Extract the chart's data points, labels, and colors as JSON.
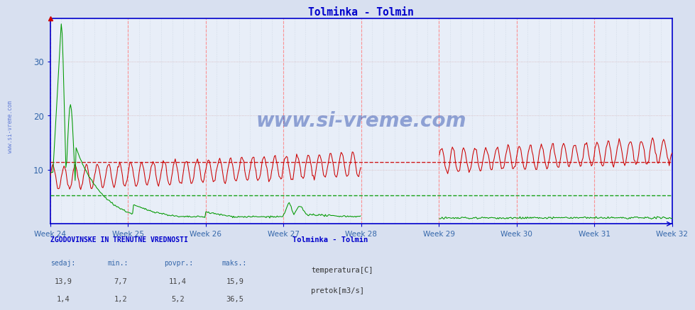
{
  "title": "Tolminka - Tolmin",
  "title_color": "#0000cc",
  "fig_bg_color": "#d8e0f0",
  "plot_bg_color": "#e8eef8",
  "axis_color": "#0000cc",
  "tick_color": "#3366aa",
  "xlim": [
    0,
    672
  ],
  "ylim": [
    0,
    38
  ],
  "yticks": [
    10,
    20,
    30
  ],
  "week_labels": [
    "Week 24",
    "Week 25",
    "Week 26",
    "Week 27",
    "Week 28",
    "Week 29",
    "Week 30",
    "Week 31",
    "Week 32"
  ],
  "week_positions": [
    0,
    84,
    168,
    252,
    336,
    420,
    504,
    588,
    672
  ],
  "temp_avg": 11.4,
  "flow_avg": 5.2,
  "temp_color": "#cc0000",
  "flow_color": "#009900",
  "vline_color": "#ff8888",
  "hgrid_color": "#cc9999",
  "vgrid_color": "#aabbcc",
  "legend_title": "Tolminka - Tolmin",
  "legend_title_color": "#0000cc",
  "temp_stats": [
    "13,9",
    "7,7",
    "11,4",
    "15,9"
  ],
  "flow_stats": [
    "1,4",
    "1,2",
    "5,2",
    "36,5"
  ],
  "watermark": "www.si-vreme.com",
  "sidebar_text": "www.si-vreme.com",
  "table_cols": [
    "sedaj:",
    "min.:",
    "povpr.:",
    "maks.:"
  ],
  "table_title": "ZGODOVINSKE IN TRENUTNE VREDNOSTI"
}
